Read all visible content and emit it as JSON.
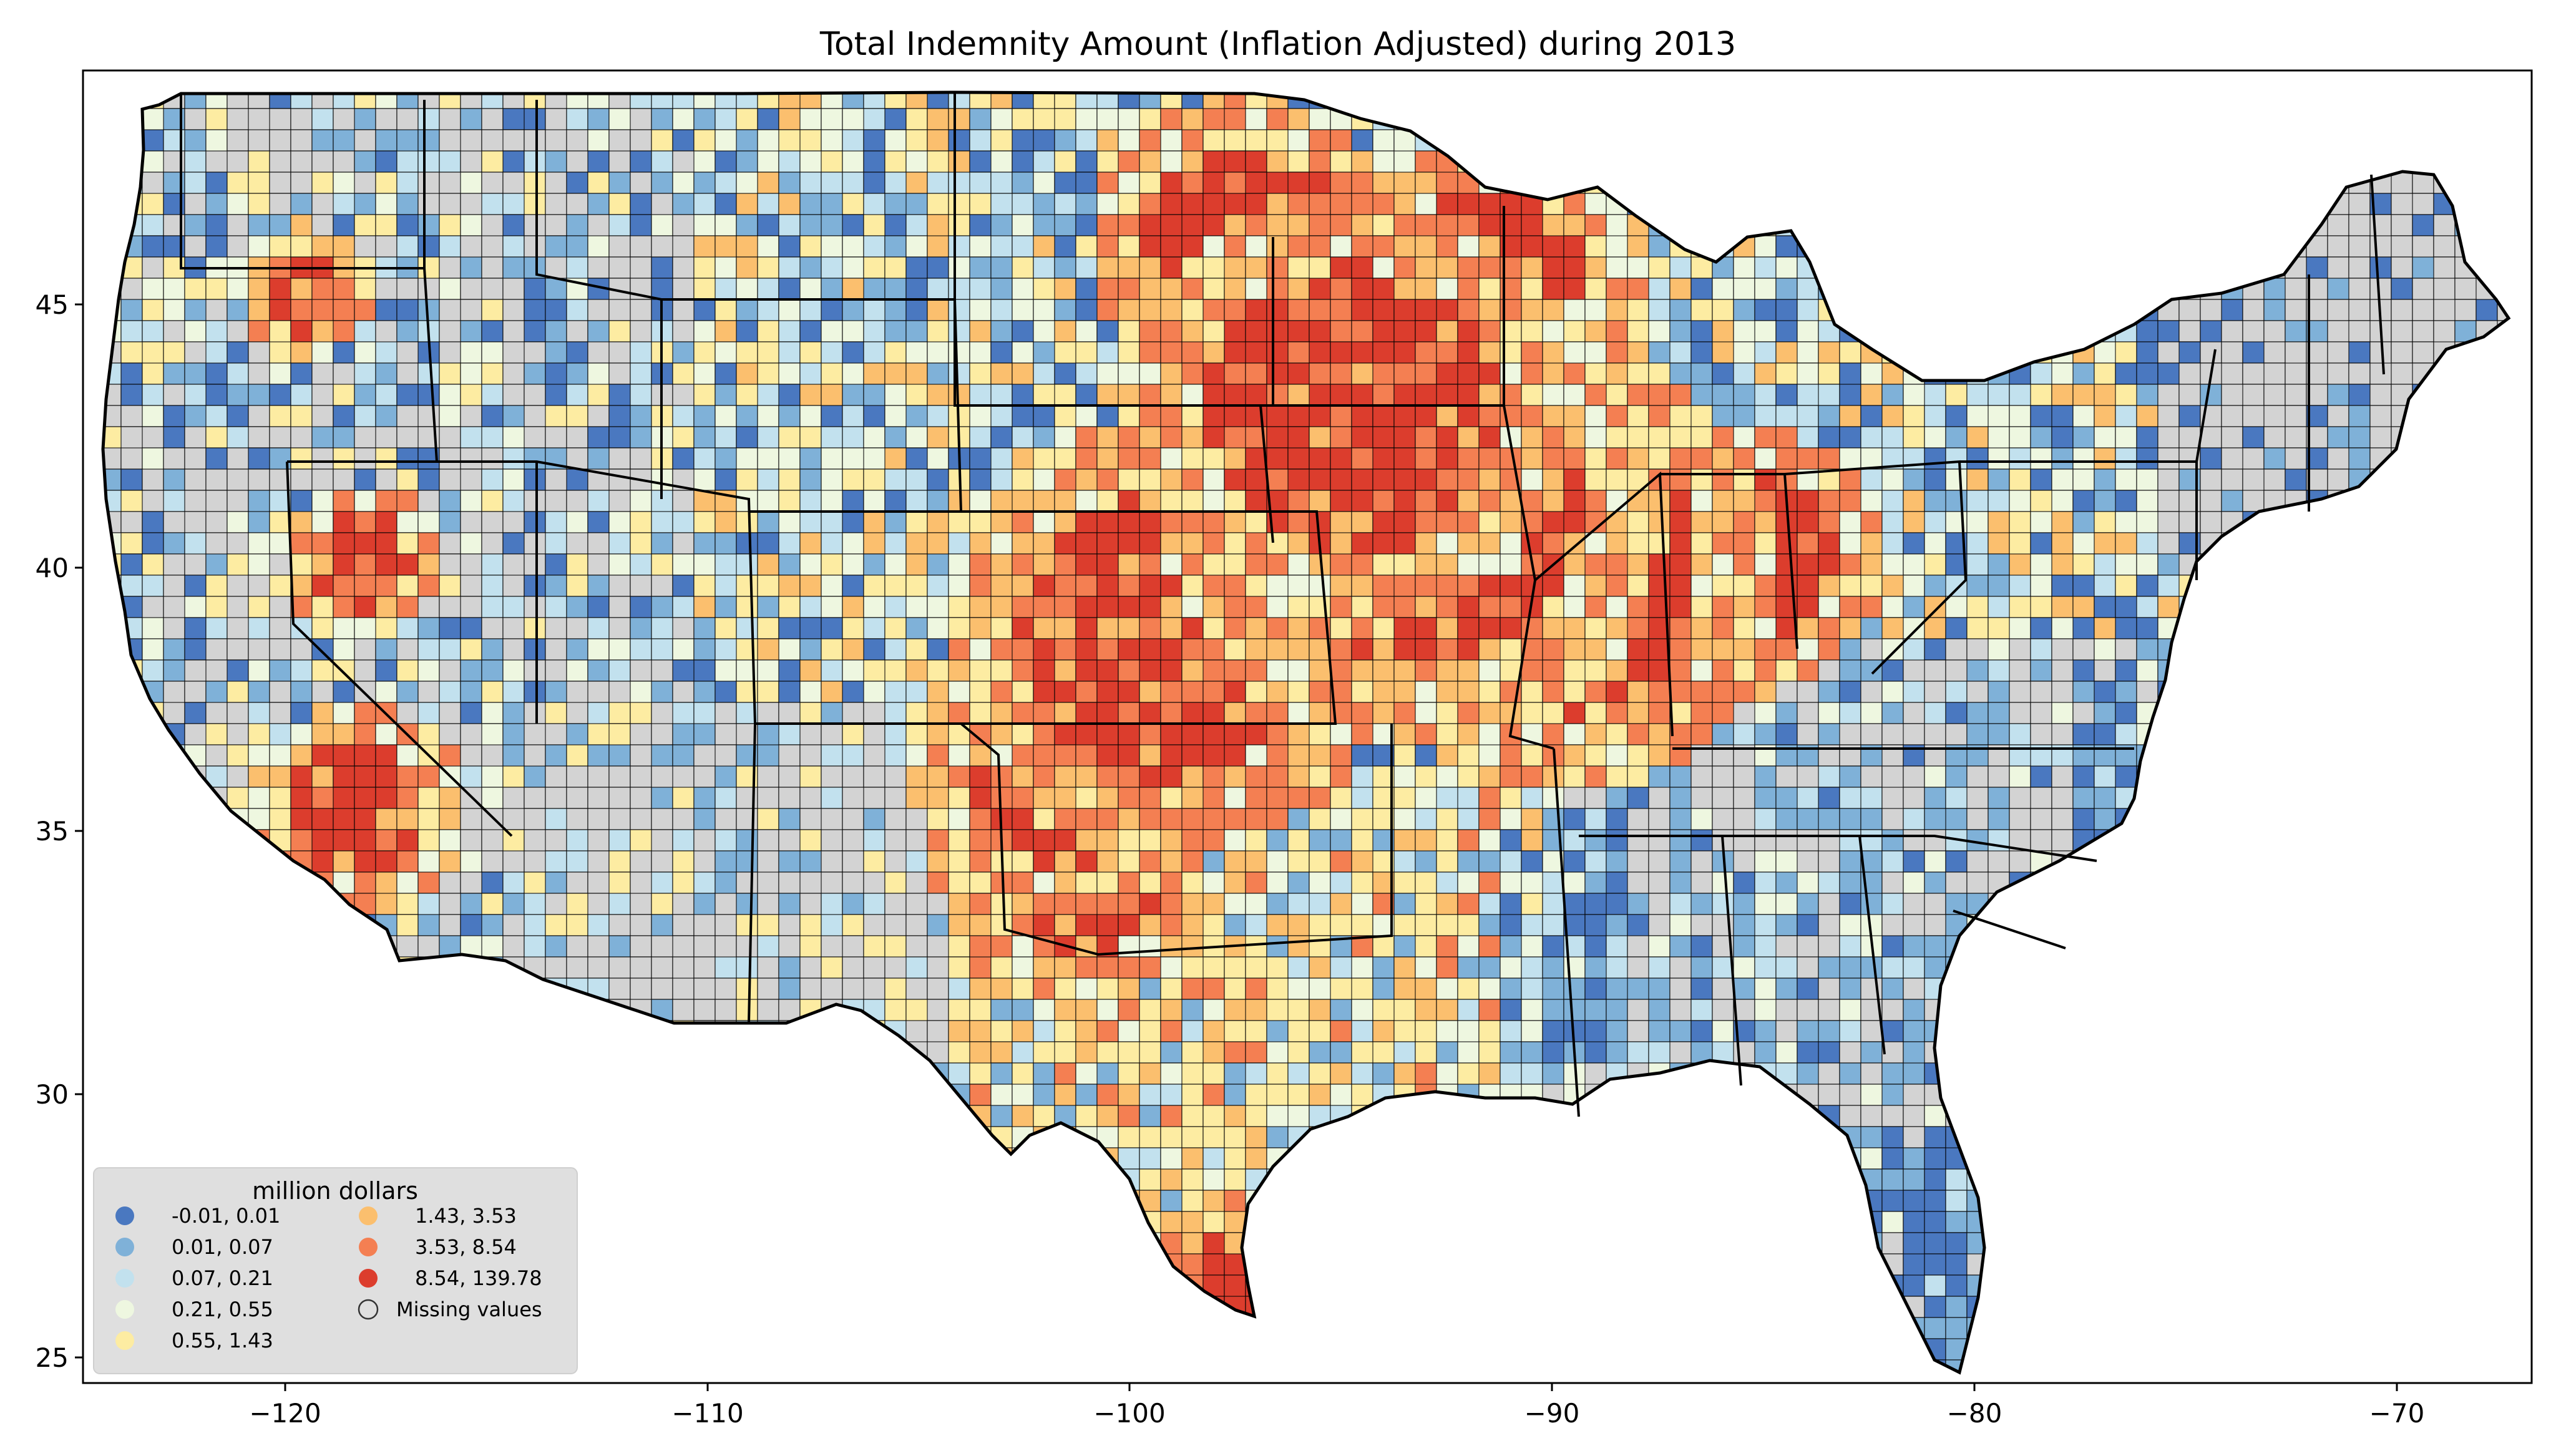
{
  "title": "Total Indemnity Amount  (Inflation Adjusted) during 2013",
  "axes": {
    "x_ticks": [
      "−120",
      "−110",
      "−100",
      "−90",
      "−80",
      "−70"
    ],
    "y_ticks": [
      "45",
      "40",
      "35",
      "30",
      "25"
    ]
  },
  "legend": {
    "title": "million dollars",
    "items": [
      {
        "label": "-0.01,   0.01",
        "color": "#4a78c0"
      },
      {
        "label": "0.01,   0.07",
        "color": "#7fb1d8"
      },
      {
        "label": "0.07,   0.21",
        "color": "#c2e1ee"
      },
      {
        "label": "0.21,   0.55",
        "color": "#eef7e0"
      },
      {
        "label": "0.55,   1.43",
        "color": "#fdeca2"
      },
      {
        "label": "1.43,   3.53",
        "color": "#fbbf6e"
      },
      {
        "label": "3.53,   8.54",
        "color": "#f47f52"
      },
      {
        "label": "8.54, 139.78",
        "color": "#dc3d2d"
      },
      {
        "label": "Missing values",
        "color": "#d3d3d3"
      }
    ]
  },
  "colors": {
    "missing": "#d3d3d3",
    "border": "#000000",
    "legend_bg": "#dcdcdc"
  }
}
